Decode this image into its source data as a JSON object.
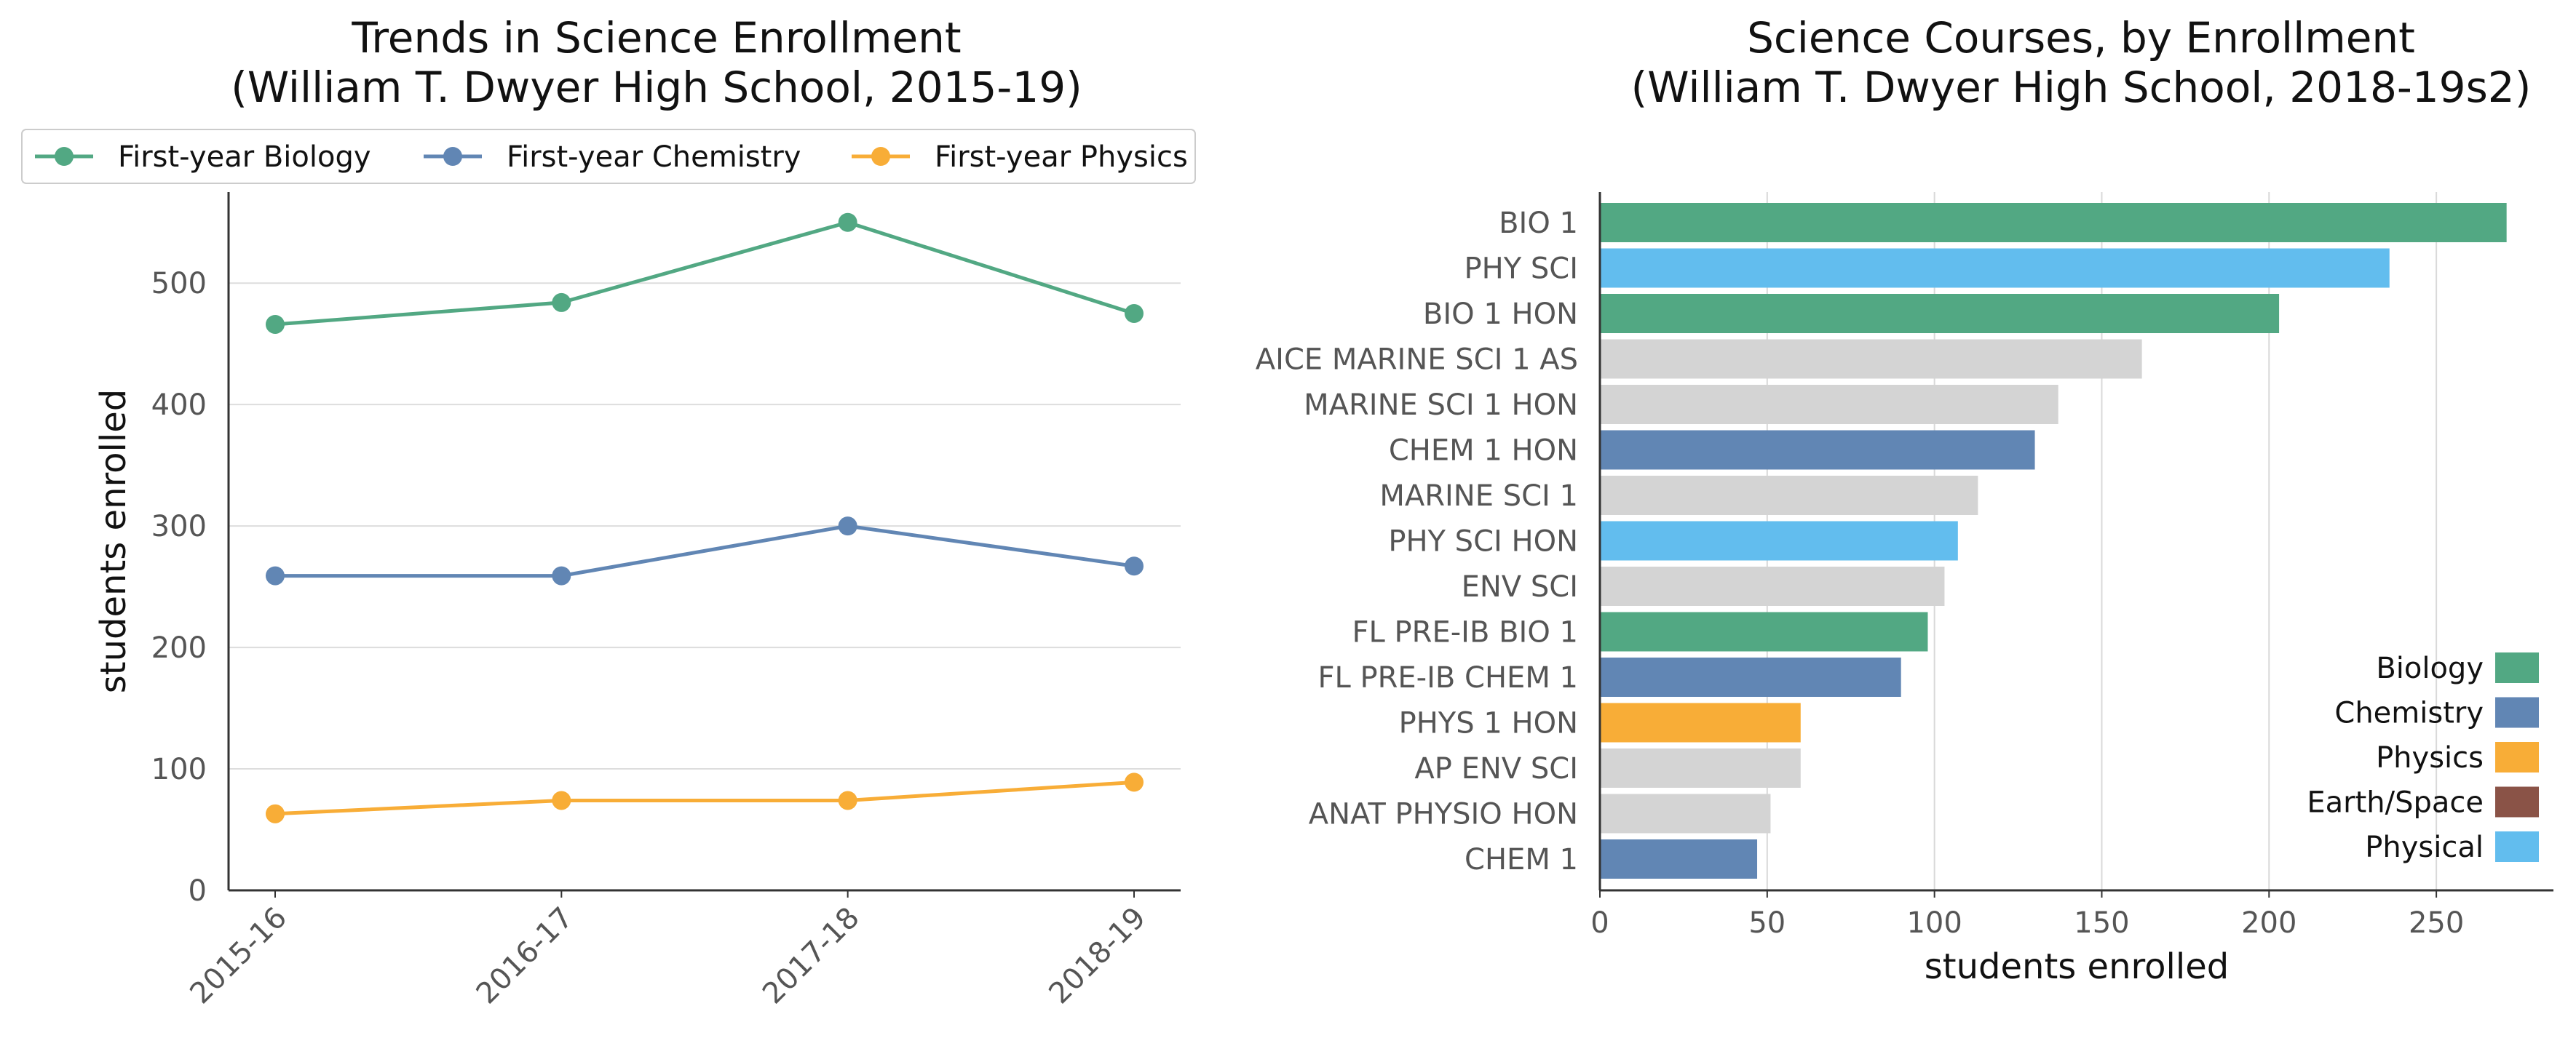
{
  "chart_data": [
    {
      "type": "line",
      "title": [
        "Trends in Science Enrollment",
        "(William T. Dwyer High School, 2015-19)"
      ],
      "xlabel": "",
      "ylabel": "students enrolled",
      "categories": [
        "2015-16",
        "2016-17",
        "2017-18",
        "2018-19"
      ],
      "ylim": [
        0,
        575
      ],
      "yticks": [
        0,
        100,
        200,
        300,
        400,
        500
      ],
      "grid": "horizontal",
      "legend_placement": "top",
      "series": [
        {
          "name": "First-year Biology",
          "color": "#52a883",
          "values": [
            466,
            484,
            550,
            475
          ]
        },
        {
          "name": "First-year Chemistry",
          "color": "#6186b4",
          "values": [
            259,
            259,
            300,
            267
          ]
        },
        {
          "name": "First-year Physics",
          "color": "#f8ad37",
          "values": [
            63,
            74,
            74,
            89
          ]
        }
      ]
    },
    {
      "type": "bar",
      "orientation": "horizontal",
      "title": [
        "Science Courses, by Enrollment",
        "(William T. Dwyer High School, 2018-19s2)"
      ],
      "xlabel": "students enrolled",
      "ylabel": "",
      "xlim": [
        0,
        285
      ],
      "xticks": [
        0,
        50,
        100,
        150,
        200,
        250
      ],
      "grid": "vertical",
      "legend_placement": "lower-right",
      "categories": [
        "BIO 1",
        "PHY SCI",
        "BIO 1 HON",
        "AICE MARINE SCI 1 AS",
        "MARINE SCI 1 HON",
        "CHEM 1 HON",
        "MARINE SCI 1",
        "PHY SCI HON",
        "ENV SCI",
        "FL PRE-IB BIO 1",
        "FL PRE-IB CHEM 1",
        "PHYS 1 HON",
        "AP ENV SCI",
        "ANAT PHYSIO HON",
        "CHEM 1"
      ],
      "values": [
        271,
        236,
        203,
        162,
        137,
        130,
        113,
        107,
        103,
        98,
        90,
        60,
        60,
        51,
        47
      ],
      "bar_colors": [
        "#52a883",
        "#62bdee",
        "#52a883",
        "#d4d4d4",
        "#d4d4d4",
        "#6186b4",
        "#d4d4d4",
        "#62bdee",
        "#d4d4d4",
        "#52a883",
        "#6186b4",
        "#f8ad37",
        "#d4d4d4",
        "#d4d4d4",
        "#6186b4"
      ],
      "legend": [
        {
          "name": "Biology",
          "color": "#52a883"
        },
        {
          "name": "Chemistry",
          "color": "#6186b4"
        },
        {
          "name": "Physics",
          "color": "#f8ad37"
        },
        {
          "name": "Earth/Space",
          "color": "#8a5347"
        },
        {
          "name": "Physical",
          "color": "#62bdee"
        }
      ]
    }
  ]
}
